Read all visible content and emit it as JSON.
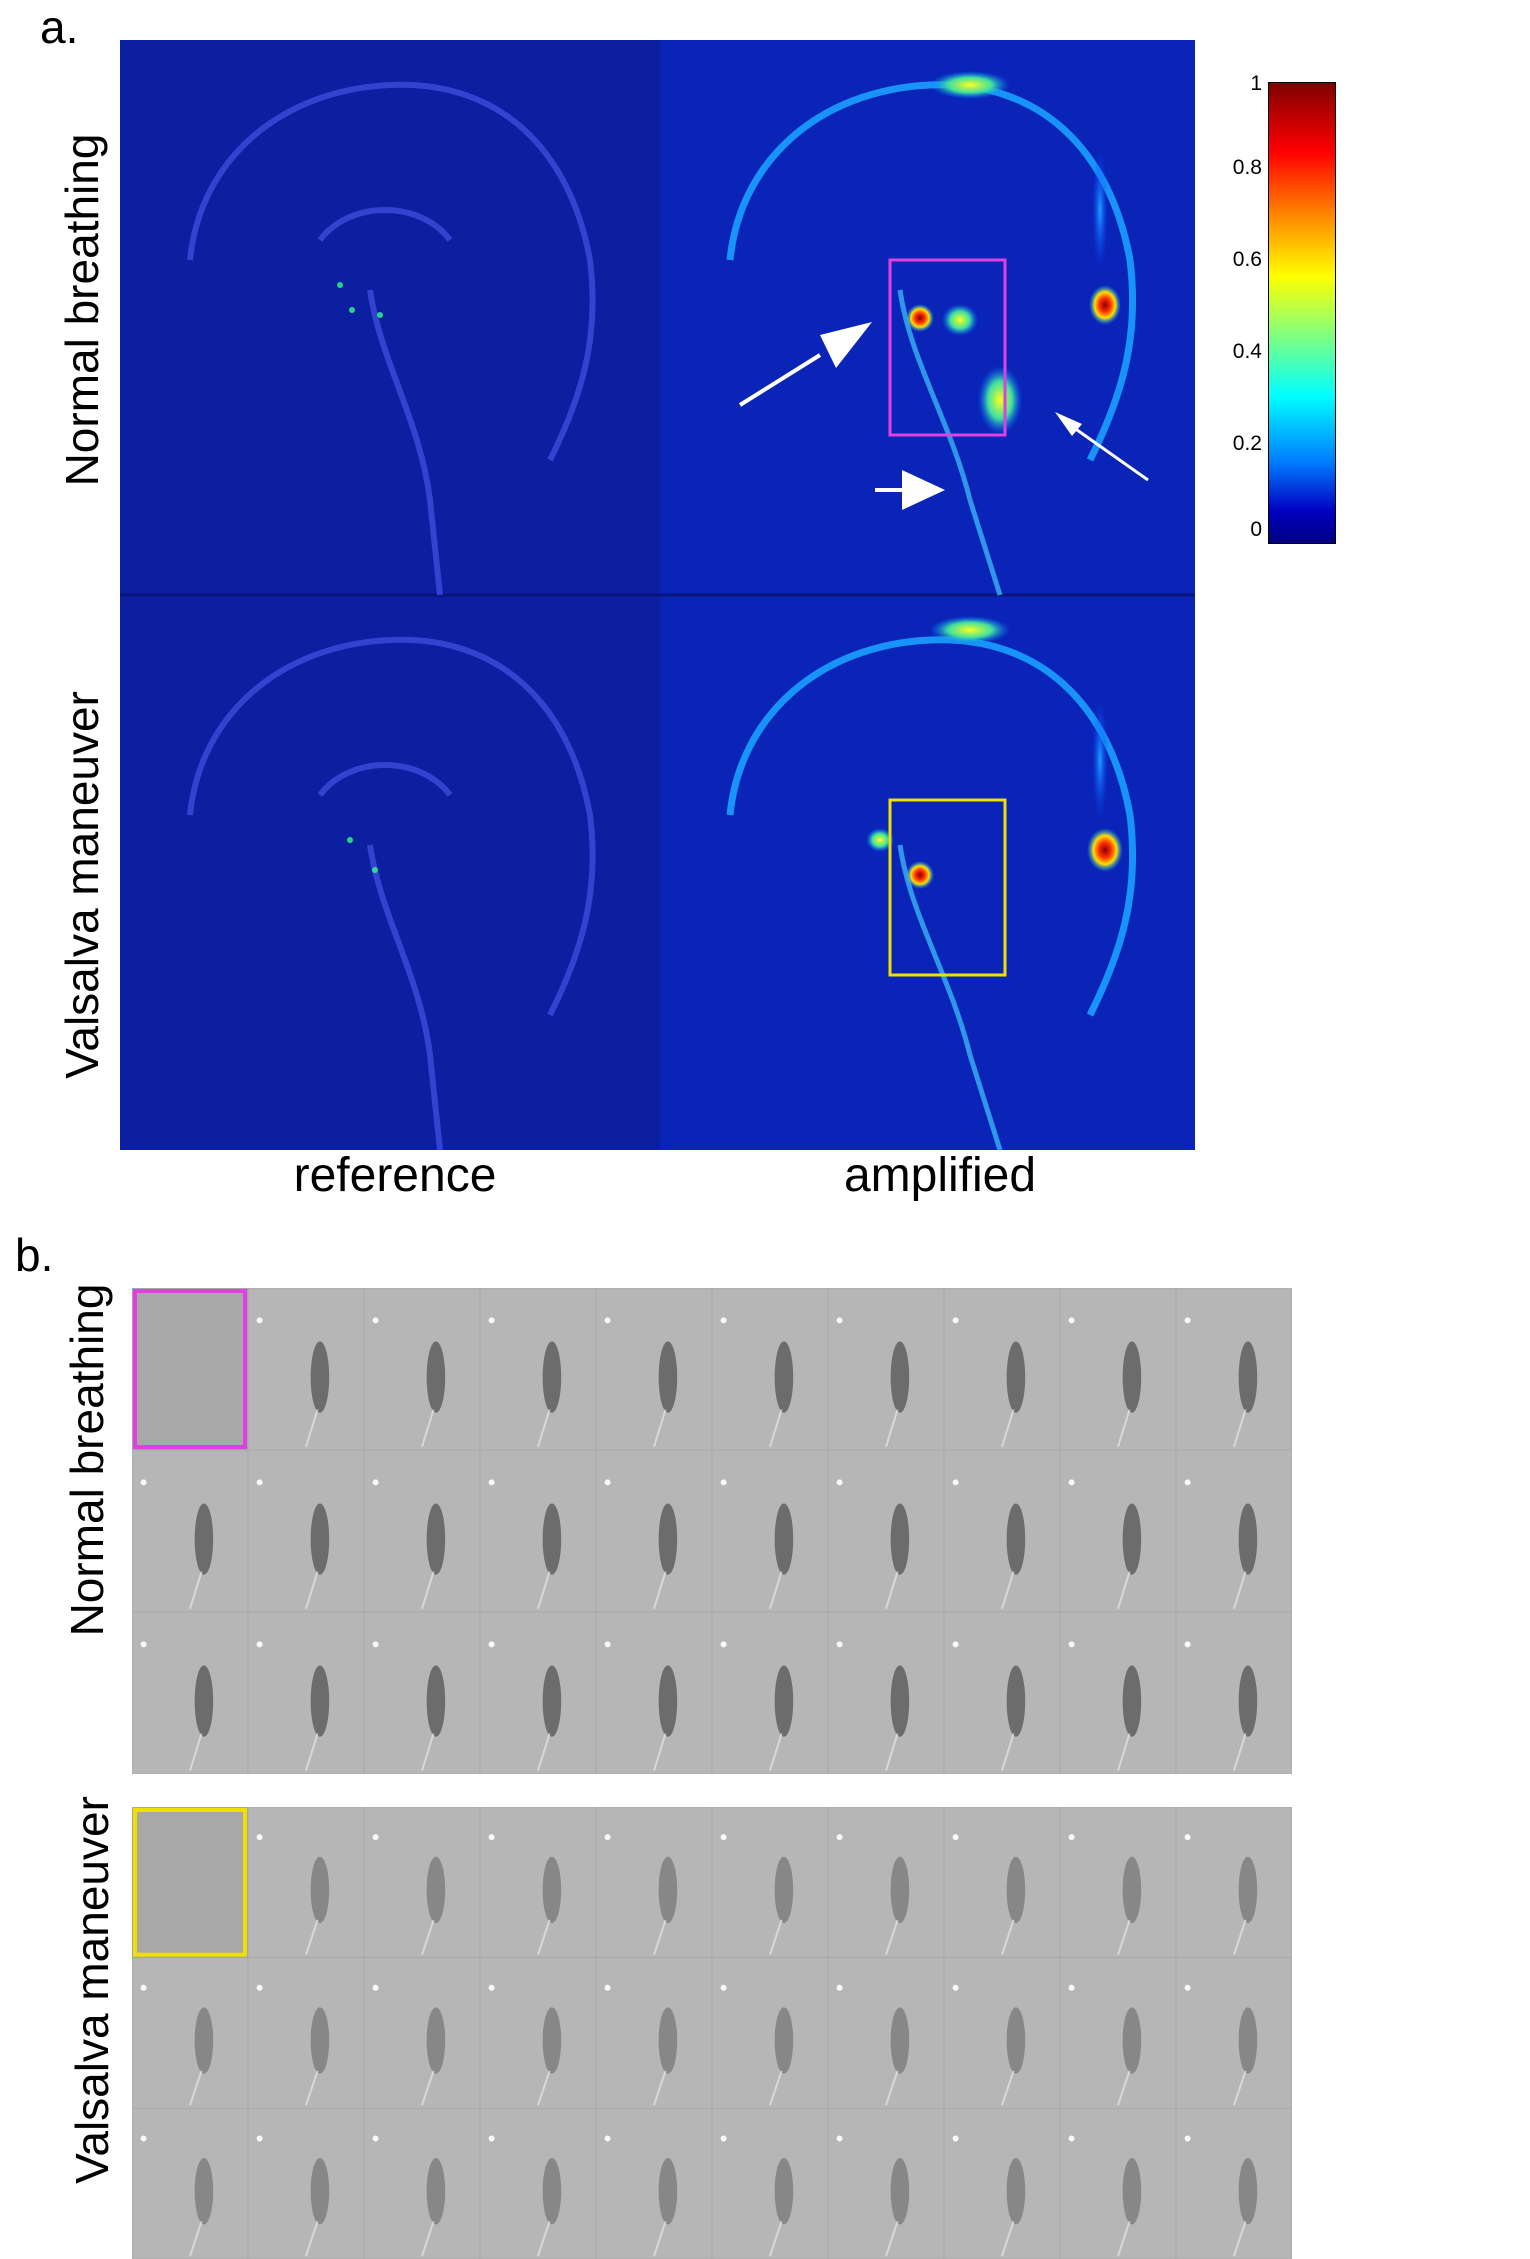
{
  "panels": {
    "a": {
      "letter": "a.",
      "rows": [
        "Normal breathing",
        "Valsalva maneuver"
      ],
      "columns": [
        "reference",
        "amplified"
      ],
      "colorbar": {
        "ticks": [
          "1",
          "0.8",
          "0.6",
          "0.4",
          "0.2",
          "0"
        ],
        "colormap": "jet",
        "range": [
          0,
          1
        ]
      },
      "roi_colors": {
        "normal": "#e040e0",
        "valsalva": "#f0e000"
      }
    },
    "b": {
      "letter": "b.",
      "rows": [
        "Normal breathing",
        "Valsalva maneuver"
      ],
      "grid": {
        "rows_per_block": 3,
        "frames_per_row": 10
      }
    }
  },
  "colors": {
    "mri_background": "#0a1a9a",
    "strip_background": "#b4b4b4",
    "arrow": "#ffffff"
  }
}
